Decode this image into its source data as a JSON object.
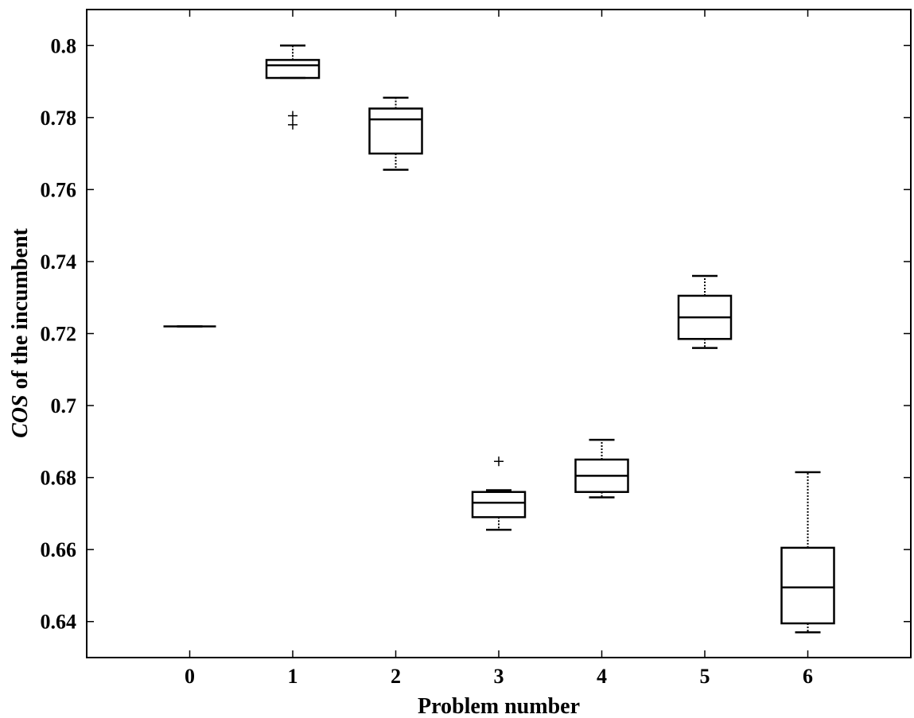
{
  "chart_data": {
    "type": "box",
    "title": "",
    "xlabel": "Problem number",
    "ylabel_italic": "COS",
    "ylabel_rest": " of the incumbent",
    "xlim": [
      -1,
      7
    ],
    "ylim": [
      0.63,
      0.81
    ],
    "xticks": [
      0,
      1,
      2,
      3,
      4,
      5,
      6
    ],
    "xtick_labels": [
      "0",
      "1",
      "2",
      "3",
      "4",
      "5",
      "6"
    ],
    "yticks": [
      0.64,
      0.66,
      0.68,
      0.7,
      0.72,
      0.74,
      0.76,
      0.78,
      0.8
    ],
    "ytick_labels": [
      "0.64",
      "0.66",
      "0.68",
      "0.7",
      "0.72",
      "0.74",
      "0.76",
      "0.78",
      "0.8"
    ],
    "grid": false,
    "boxes": [
      {
        "x": 0,
        "whisker_low": 0.722,
        "q1": 0.722,
        "median": 0.722,
        "q3": 0.722,
        "whisker_high": 0.722,
        "outliers": []
      },
      {
        "x": 1,
        "whisker_low": 0.791,
        "q1": 0.791,
        "median": 0.7945,
        "q3": 0.796,
        "whisker_high": 0.8,
        "outliers": [
          0.778,
          0.7805
        ]
      },
      {
        "x": 2,
        "whisker_low": 0.7655,
        "q1": 0.77,
        "median": 0.7795,
        "q3": 0.7825,
        "whisker_high": 0.7855,
        "outliers": []
      },
      {
        "x": 3,
        "whisker_low": 0.6655,
        "q1": 0.669,
        "median": 0.673,
        "q3": 0.676,
        "whisker_high": 0.6765,
        "outliers": [
          0.6845
        ]
      },
      {
        "x": 4,
        "whisker_low": 0.6745,
        "q1": 0.676,
        "median": 0.6805,
        "q3": 0.685,
        "whisker_high": 0.6905,
        "outliers": []
      },
      {
        "x": 5,
        "whisker_low": 0.716,
        "q1": 0.7185,
        "median": 0.7245,
        "q3": 0.7305,
        "whisker_high": 0.736,
        "outliers": []
      },
      {
        "x": 6,
        "whisker_low": 0.637,
        "q1": 0.6395,
        "median": 0.6495,
        "q3": 0.6605,
        "whisker_high": 0.6815,
        "outliers": []
      }
    ]
  }
}
